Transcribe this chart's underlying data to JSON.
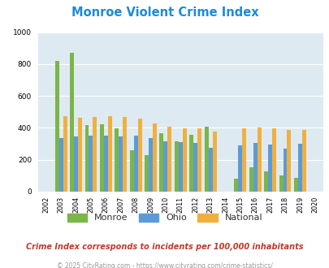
{
  "title": "Monroe Violent Crime Index",
  "subtitle": "Crime Index corresponds to incidents per 100,000 inhabitants",
  "footer": "© 2025 CityRating.com - https://www.cityrating.com/crime-statistics/",
  "years": [
    2002,
    2003,
    2004,
    2005,
    2006,
    2007,
    2008,
    2009,
    2010,
    2011,
    2012,
    2013,
    2014,
    2015,
    2016,
    2017,
    2018,
    2019,
    2020
  ],
  "monroe": [
    0,
    820,
    870,
    415,
    420,
    395,
    260,
    230,
    365,
    315,
    355,
    405,
    0,
    80,
    155,
    125,
    100,
    85,
    0
  ],
  "ohio": [
    0,
    335,
    348,
    352,
    352,
    348,
    352,
    338,
    315,
    308,
    305,
    275,
    0,
    290,
    303,
    297,
    272,
    298,
    0
  ],
  "national": [
    0,
    472,
    463,
    469,
    474,
    467,
    457,
    430,
    405,
    398,
    397,
    375,
    0,
    396,
    404,
    399,
    389,
    389,
    0
  ],
  "monroe_color": "#7ab648",
  "ohio_color": "#5b9bd5",
  "national_color": "#f0b040",
  "bg_color": "#deeaf1",
  "title_color": "#1a8cd8",
  "subtitle_color": "#c0392b",
  "footer_color": "#999999",
  "ylim": [
    0,
    1000
  ],
  "yticks": [
    0,
    200,
    400,
    600,
    800,
    1000
  ]
}
